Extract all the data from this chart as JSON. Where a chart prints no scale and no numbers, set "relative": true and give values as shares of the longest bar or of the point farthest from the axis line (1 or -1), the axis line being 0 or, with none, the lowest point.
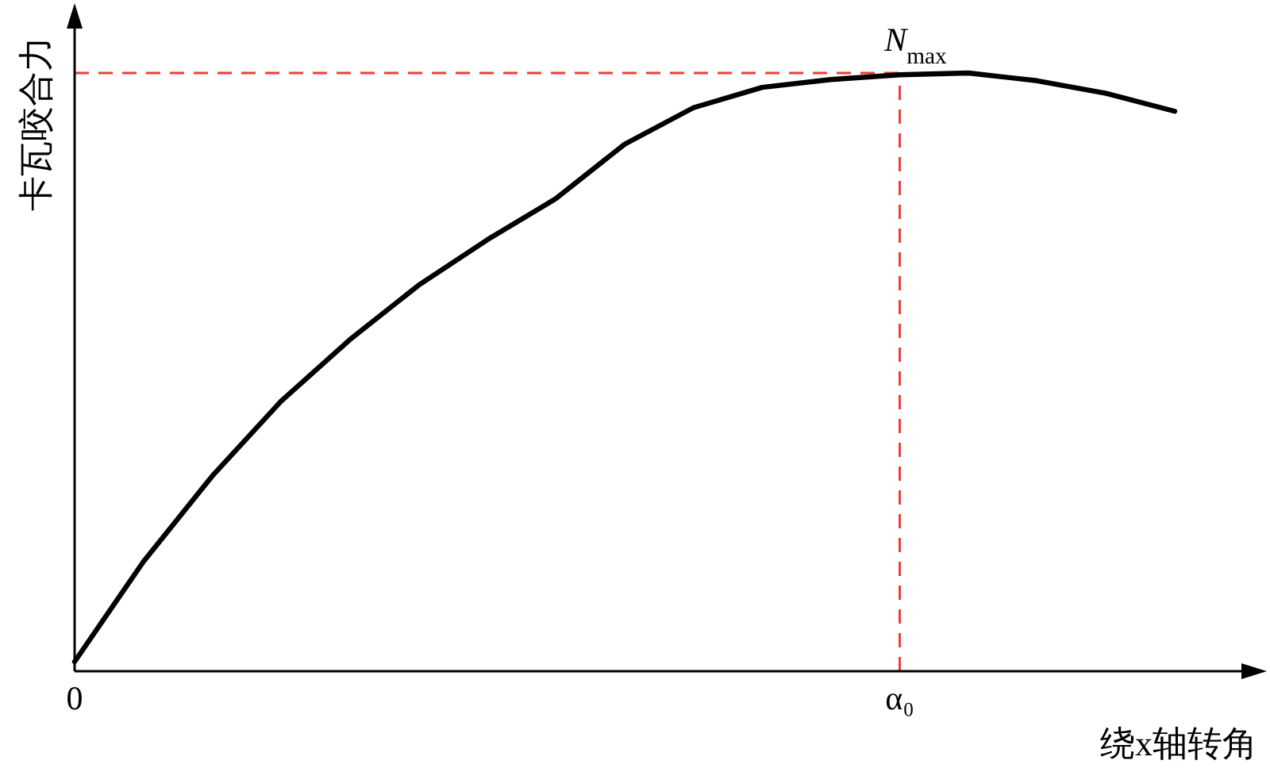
{
  "chart_data": {
    "type": "line",
    "relative": true,
    "xlabel": "绕x轴转角",
    "ylabel": "卡瓦咬合力",
    "categories": [
      "0",
      null,
      null,
      null,
      null,
      null,
      null,
      null,
      null,
      null,
      null,
      null,
      "α₀",
      null,
      null,
      null,
      null
    ],
    "series": [
      {
        "color": "#000000",
        "values": [
          0.016,
          0.183,
          0.326,
          0.451,
          0.554,
          0.645,
          0.721,
          0.79,
          0.881,
          0.942,
          0.976,
          0.989,
          0.997,
          1,
          0.987,
          0.966,
          0.936
        ]
      }
    ],
    "ref_lines": [
      {
        "axis": "x",
        "value": "α₀",
        "color": "#e8413c",
        "line_style": "dashed"
      },
      {
        "axis": "y",
        "value": 1,
        "color": "#e8413c",
        "line_style": "dashed"
      }
    ],
    "annotations": [
      {
        "text": "N$_{max}$",
        "x": "α₀",
        "y": 1
      }
    ]
  }
}
